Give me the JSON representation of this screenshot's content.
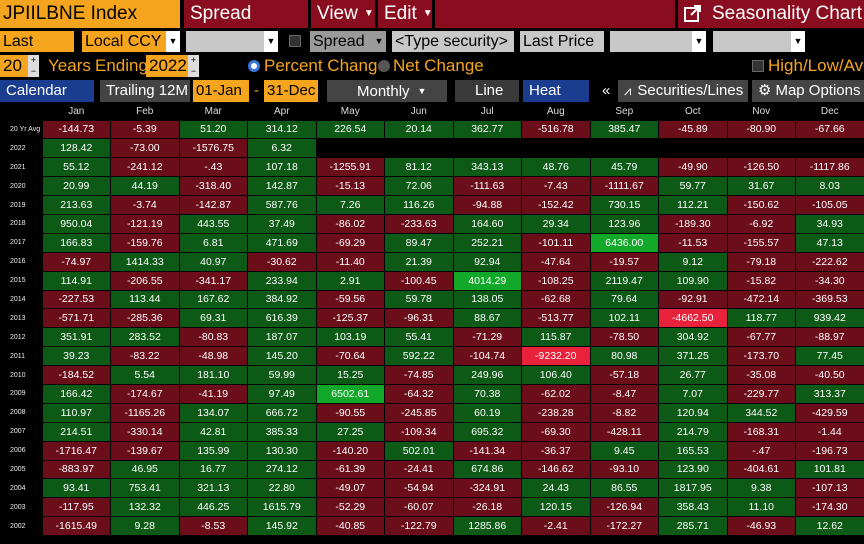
{
  "header": {
    "ticker": "JPIILBNE Index",
    "menu": [
      "Spread Builder",
      "View",
      "Edit"
    ],
    "app_title": "Seasonality Chart"
  },
  "fields": {
    "price_field_1": "Last Price",
    "currency": "Local CCY",
    "spread": "Spread",
    "security_placeholder": "<Type security>",
    "price_field_2": "Last Price"
  },
  "options": {
    "years": "20",
    "years_label": "Years",
    "ending_label": "Ending",
    "end_year": "2022",
    "percent_change": "Percent Change",
    "net_change": "Net Change",
    "high_low_avg": "High/Low/Avg"
  },
  "toolbar": {
    "calendar_year": "Calendar Year",
    "trailing": "Trailing 12M",
    "start_date": "01-Jan",
    "dash": "-",
    "end_date": "31-Dec",
    "frequency": "Monthly",
    "line": "Line",
    "heat_map": "Heat Map",
    "collapse": "«",
    "securities_lines": "Securities/Lines",
    "map_options": "Map Options"
  },
  "colors": {
    "accent": "#f5a41d",
    "menu_red": "#8a0d1f",
    "positive": "#0d5a17",
    "negative": "#6b0e1a",
    "positive_high": "#12a82a",
    "negative_high": "#e8223a"
  },
  "table": {
    "months": [
      "Jan",
      "Feb",
      "Mar",
      "Apr",
      "May",
      "Jun",
      "Jul",
      "Aug",
      "Sep",
      "Oct",
      "Nov",
      "Dec"
    ],
    "rows": [
      {
        "year": "20 Yr Avg",
        "v": [
          "-144.73",
          "-5.39",
          "51.20",
          "314.12",
          "226.54",
          "20.14",
          "362.77",
          "-516.78",
          "385.47",
          "-45.89",
          "-80.90",
          "-67.66"
        ]
      },
      {
        "year": "2022",
        "v": [
          "128.42",
          "-73.00",
          "-1576.75",
          "6.32",
          "",
          "",
          "",
          "",
          "",
          "",
          "",
          ""
        ]
      },
      {
        "year": "2021",
        "v": [
          "55.12",
          "-241.12",
          "-.43",
          "107.18",
          "-1255.91",
          "81.12",
          "343.13",
          "48.76",
          "45.79",
          "-49.90",
          "-126.50",
          "-1117.86"
        ]
      },
      {
        "year": "2020",
        "v": [
          "20.99",
          "44.19",
          "-318.40",
          "142.87",
          "-15.13",
          "72.06",
          "-111.63",
          "-7.43",
          "-1111.67",
          "59.77",
          "31.67",
          "8.03"
        ]
      },
      {
        "year": "2019",
        "v": [
          "213.63",
          "-3.74",
          "-142.87",
          "587.76",
          "7.26",
          "116.26",
          "-94.88",
          "-152.42",
          "730.15",
          "112.21",
          "-150.62",
          "-105.05"
        ]
      },
      {
        "year": "2018",
        "v": [
          "950.04",
          "-121.19",
          "443.55",
          "37.49",
          "-86.02",
          "-233.63",
          "164.60",
          "29.34",
          "123.96",
          "-189.30",
          "-6.92",
          "34.93"
        ]
      },
      {
        "year": "2017",
        "v": [
          "166.83",
          "-159.76",
          "6.81",
          "471.69",
          "-69.29",
          "89.47",
          "252.21",
          "-101.11",
          "6436.00",
          "-11.53",
          "-155.57",
          "47.13"
        ]
      },
      {
        "year": "2016",
        "v": [
          "-74.97",
          "1414.33",
          "40.97",
          "-30.62",
          "-11.40",
          "21.39",
          "92.94",
          "-47.64",
          "-19.57",
          "9.12",
          "-79.18",
          "-222.62"
        ]
      },
      {
        "year": "2015",
        "v": [
          "114.91",
          "-206.55",
          "-341.17",
          "233.94",
          "2.91",
          "-100.45",
          "4014.29",
          "-108.25",
          "2119.47",
          "109.90",
          "-15.82",
          "-34.30"
        ]
      },
      {
        "year": "2014",
        "v": [
          "-227.53",
          "113.44",
          "167.62",
          "384.92",
          "-59.56",
          "59.78",
          "138.05",
          "-62.68",
          "79.64",
          "-92.91",
          "-472.14",
          "-369.53"
        ]
      },
      {
        "year": "2013",
        "v": [
          "-571.71",
          "-285.36",
          "69.31",
          "616.39",
          "-125.37",
          "-96.31",
          "88.67",
          "-513.77",
          "102.11",
          "-4662.50",
          "118.77",
          "939.42"
        ]
      },
      {
        "year": "2012",
        "v": [
          "351.91",
          "283.52",
          "-80.83",
          "187.07",
          "103.19",
          "55.41",
          "-71.29",
          "115.87",
          "-78.50",
          "304.92",
          "-67.77",
          "-88.97"
        ]
      },
      {
        "year": "2011",
        "v": [
          "39.23",
          "-83.22",
          "-48.98",
          "145.20",
          "-70.64",
          "592.22",
          "-104.74",
          "-9232.20",
          "80.98",
          "371.25",
          "-173.70",
          "77.45"
        ]
      },
      {
        "year": "2010",
        "v": [
          "-184.52",
          "5.54",
          "181.10",
          "59.99",
          "15.25",
          "-74.85",
          "249.96",
          "106.40",
          "-57.18",
          "26.77",
          "-35.08",
          "-40.50"
        ]
      },
      {
        "year": "2009",
        "v": [
          "166.42",
          "-174.67",
          "-41.19",
          "97.49",
          "6502.61",
          "-64.32",
          "70.38",
          "-62.02",
          "-8.47",
          "7.07",
          "-229.77",
          "313.37"
        ]
      },
      {
        "year": "2008",
        "v": [
          "110.97",
          "-1165.26",
          "134.07",
          "666.72",
          "-90.55",
          "-245.85",
          "60.19",
          "-238.28",
          "-8.82",
          "120.94",
          "344.52",
          "-429.59"
        ]
      },
      {
        "year": "2007",
        "v": [
          "214.51",
          "-330.14",
          "42.81",
          "385.33",
          "27.25",
          "-109.34",
          "695.32",
          "-69.30",
          "-428.11",
          "214.79",
          "-168.31",
          "-1.44"
        ]
      },
      {
        "year": "2006",
        "v": [
          "-1716.47",
          "-139.67",
          "135.99",
          "130.30",
          "-140.20",
          "502.01",
          "-141.34",
          "-36.37",
          "9.45",
          "165.53",
          "-.47",
          "-196.73"
        ]
      },
      {
        "year": "2005",
        "v": [
          "-883.97",
          "46.95",
          "16.77",
          "274.12",
          "-61.39",
          "-24.41",
          "674.86",
          "-146.62",
          "-93.10",
          "123.90",
          "-404.61",
          "101.81"
        ]
      },
      {
        "year": "2004",
        "v": [
          "93.41",
          "753.41",
          "321.13",
          "22.80",
          "-49.07",
          "-54.94",
          "-324.91",
          "24.43",
          "86.55",
          "1817.95",
          "9.38",
          "-107.13"
        ]
      },
      {
        "year": "2003",
        "v": [
          "-117.95",
          "132.32",
          "446.25",
          "1615.79",
          "-52.29",
          "-60.07",
          "-26.18",
          "120.15",
          "-126.94",
          "358.43",
          "11.10",
          "-174.30"
        ]
      },
      {
        "year": "2002",
        "v": [
          "-1615.49",
          "9.28",
          "-8.53",
          "145.92",
          "-40.85",
          "-122.79",
          "1285.86",
          "-2.41",
          "-172.27",
          "285.71",
          "-46.93",
          "12.62"
        ]
      }
    ]
  }
}
